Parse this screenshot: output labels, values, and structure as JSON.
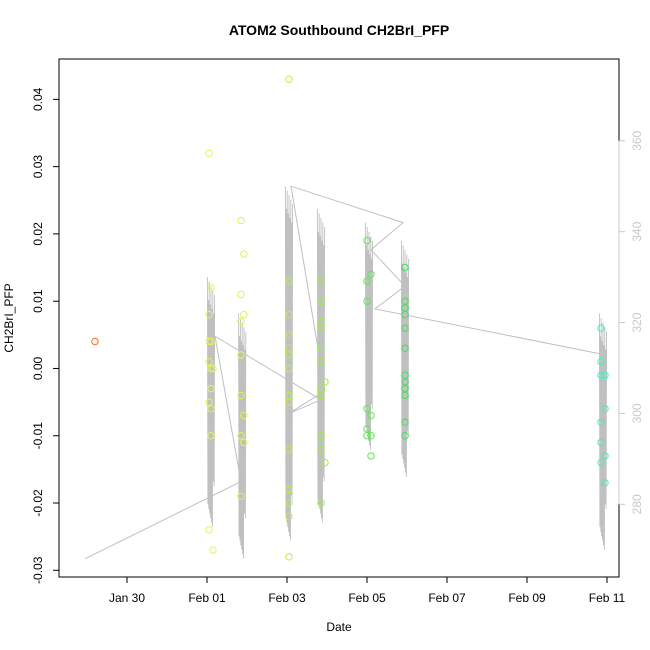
{
  "chart_data": {
    "type": "scatter",
    "title": "ATOM2 Southbound CH2BrI_PFP",
    "xlabel": "Date",
    "ylabel": "CH2BrI_PFP",
    "x_tick_labels": [
      "Jan 30",
      "Feb 01",
      "Feb 03",
      "Feb 05",
      "Feb 07",
      "Feb 09",
      "Feb 11"
    ],
    "y_tick_labels": [
      "-0.03",
      "-0.02",
      "-0.01",
      "0.00",
      "0.01",
      "0.02",
      "0.03",
      "0.04"
    ],
    "y2_tick_labels": [
      "280",
      "300",
      "320",
      "340",
      "360"
    ],
    "colors": {
      "plot_frame": "#000000",
      "right_axis": "#c8c8c8",
      "altitude_line": "#c0c0c0"
    },
    "x_axis": {
      "unit": "days",
      "range": [
        -0.7,
        13.3
      ],
      "ticks": [
        1,
        3,
        5,
        7,
        9,
        11,
        13
      ],
      "tick_dates": [
        "Jan 30",
        "Feb 01",
        "Feb 03",
        "Feb 05",
        "Feb 07",
        "Feb 09",
        "Feb 11"
      ]
    },
    "ylim": [
      -0.031,
      0.046
    ],
    "y_ticks": [
      -0.03,
      -0.02,
      -0.01,
      0.0,
      0.01,
      0.02,
      0.03,
      0.04
    ],
    "y2lim": [
      264,
      378
    ],
    "y2_ticks": [
      280,
      300,
      320,
      340,
      360
    ],
    "series": [
      {
        "points": [
          {
            "date": "Jan 29.2",
            "day": 0.2,
            "y": 0.004,
            "color": "#ff6a2a"
          },
          {
            "date": "Feb 01.05",
            "day": 3.05,
            "y": 0.032,
            "color": "#e6f25a"
          },
          {
            "date": "Feb 01.05",
            "day": 3.05,
            "y": 0.008,
            "color": "#e6f25a"
          },
          {
            "date": "Feb 01.05",
            "day": 3.05,
            "y": 0.004,
            "color": "#e6f25a"
          },
          {
            "date": "Feb 01.05",
            "day": 3.05,
            "y": 0.001,
            "color": "#e6f25a"
          },
          {
            "date": "Feb 01.05",
            "day": 3.05,
            "y": -0.005,
            "color": "#e6f25a"
          },
          {
            "date": "Feb 01.05",
            "day": 3.05,
            "y": -0.024,
            "color": "#e6f25a"
          },
          {
            "date": "Feb 01.1",
            "day": 3.1,
            "y": 0.012,
            "color": "#e6f25a"
          },
          {
            "date": "Feb 01.1",
            "day": 3.1,
            "y": 0.004,
            "color": "#e6f25a"
          },
          {
            "date": "Feb 01.1",
            "day": 3.1,
            "y": 0.0,
            "color": "#e6f25a"
          },
          {
            "date": "Feb 01.1",
            "day": 3.1,
            "y": -0.003,
            "color": "#e6f25a"
          },
          {
            "date": "Feb 01.1",
            "day": 3.1,
            "y": -0.006,
            "color": "#e6f25a"
          },
          {
            "date": "Feb 01.1",
            "day": 3.1,
            "y": -0.01,
            "color": "#e6f25a"
          },
          {
            "date": "Feb 01.15",
            "day": 3.15,
            "y": 0.0,
            "color": "#e6f25a"
          },
          {
            "date": "Feb 01.15",
            "day": 3.15,
            "y": -0.027,
            "color": "#e6f25a"
          },
          {
            "date": "Feb 01.85",
            "day": 3.85,
            "y": 0.022,
            "color": "#e0f255"
          },
          {
            "date": "Feb 01.85",
            "day": 3.85,
            "y": 0.011,
            "color": "#e0f255"
          },
          {
            "date": "Feb 01.85",
            "day": 3.85,
            "y": 0.007,
            "color": "#e0f255"
          },
          {
            "date": "Feb 01.85",
            "day": 3.85,
            "y": 0.002,
            "color": "#e0f255"
          },
          {
            "date": "Feb 01.85",
            "day": 3.85,
            "y": -0.004,
            "color": "#e0f255"
          },
          {
            "date": "Feb 01.85",
            "day": 3.85,
            "y": -0.01,
            "color": "#e0f255"
          },
          {
            "date": "Feb 01.85",
            "day": 3.85,
            "y": -0.019,
            "color": "#e0f255"
          },
          {
            "date": "Feb 01.92",
            "day": 3.92,
            "y": 0.017,
            "color": "#e0f255"
          },
          {
            "date": "Feb 01.92",
            "day": 3.92,
            "y": 0.008,
            "color": "#e0f255"
          },
          {
            "date": "Feb 01.92",
            "day": 3.92,
            "y": -0.007,
            "color": "#e0f255"
          },
          {
            "date": "Feb 01.92",
            "day": 3.92,
            "y": -0.011,
            "color": "#e0f255"
          },
          {
            "date": "Feb 03.05",
            "day": 5.05,
            "y": 0.043,
            "color": "#b8f04a"
          },
          {
            "date": "Feb 03.05",
            "day": 5.05,
            "y": 0.013,
            "color": "#b8f04a"
          },
          {
            "date": "Feb 03.05",
            "day": 5.05,
            "y": 0.008,
            "color": "#b8f04a"
          },
          {
            "date": "Feb 03.05",
            "day": 5.05,
            "y": 0.005,
            "color": "#b8f04a"
          },
          {
            "date": "Feb 03.05",
            "day": 5.05,
            "y": 0.003,
            "color": "#b8f04a"
          },
          {
            "date": "Feb 03.05",
            "day": 5.05,
            "y": 0.002,
            "color": "#b8f04a"
          },
          {
            "date": "Feb 03.05",
            "day": 5.05,
            "y": 0.0,
            "color": "#b8f04a"
          },
          {
            "date": "Feb 03.05",
            "day": 5.05,
            "y": -0.004,
            "color": "#b8f04a"
          },
          {
            "date": "Feb 03.05",
            "day": 5.05,
            "y": -0.005,
            "color": "#b8f04a"
          },
          {
            "date": "Feb 03.05",
            "day": 5.05,
            "y": -0.012,
            "color": "#b8f04a"
          },
          {
            "date": "Feb 03.05",
            "day": 5.05,
            "y": -0.018,
            "color": "#b8f04a"
          },
          {
            "date": "Feb 03.05",
            "day": 5.05,
            "y": -0.02,
            "color": "#b8f04a"
          },
          {
            "date": "Feb 03.05",
            "day": 5.05,
            "y": -0.022,
            "color": "#b8f04a"
          },
          {
            "date": "Feb 03.05",
            "day": 5.05,
            "y": -0.028,
            "color": "#b8f04a"
          },
          {
            "date": "Feb 03.85",
            "day": 5.85,
            "y": 0.013,
            "color": "#9bee45"
          },
          {
            "date": "Feb 03.85",
            "day": 5.85,
            "y": 0.01,
            "color": "#9bee45"
          },
          {
            "date": "Feb 03.85",
            "day": 5.85,
            "y": 0.007,
            "color": "#9bee45"
          },
          {
            "date": "Feb 03.85",
            "day": 5.85,
            "y": 0.006,
            "color": "#9bee45"
          },
          {
            "date": "Feb 03.85",
            "day": 5.85,
            "y": 0.003,
            "color": "#9bee45"
          },
          {
            "date": "Feb 03.85",
            "day": 5.85,
            "y": 0.001,
            "color": "#9bee45"
          },
          {
            "date": "Feb 03.85",
            "day": 5.85,
            "y": -0.003,
            "color": "#9bee45"
          },
          {
            "date": "Feb 03.85",
            "day": 5.85,
            "y": -0.004,
            "color": "#9bee45"
          },
          {
            "date": "Feb 03.85",
            "day": 5.85,
            "y": -0.01,
            "color": "#9bee45"
          },
          {
            "date": "Feb 03.85",
            "day": 5.85,
            "y": -0.012,
            "color": "#9bee45"
          },
          {
            "date": "Feb 03.85",
            "day": 5.85,
            "y": -0.02,
            "color": "#9bee45"
          },
          {
            "date": "Feb 03.95",
            "day": 5.95,
            "y": -0.002,
            "color": "#9bee45"
          },
          {
            "date": "Feb 03.95",
            "day": 5.95,
            "y": -0.014,
            "color": "#9bee45"
          },
          {
            "date": "Feb 05.0",
            "day": 7.0,
            "y": 0.019,
            "color": "#5ce852"
          },
          {
            "date": "Feb 05.0",
            "day": 7.0,
            "y": 0.013,
            "color": "#5ce852"
          },
          {
            "date": "Feb 05.0",
            "day": 7.0,
            "y": 0.01,
            "color": "#5ce852"
          },
          {
            "date": "Feb 05.0",
            "day": 7.0,
            "y": -0.006,
            "color": "#5ce852"
          },
          {
            "date": "Feb 05.0",
            "day": 7.0,
            "y": -0.009,
            "color": "#5ce852"
          },
          {
            "date": "Feb 05.0",
            "day": 7.0,
            "y": -0.01,
            "color": "#5ce852"
          },
          {
            "date": "Feb 05.1",
            "day": 7.1,
            "y": 0.014,
            "color": "#5ce852"
          },
          {
            "date": "Feb 05.1",
            "day": 7.1,
            "y": -0.007,
            "color": "#5ce852"
          },
          {
            "date": "Feb 05.1",
            "day": 7.1,
            "y": -0.01,
            "color": "#5ce852"
          },
          {
            "date": "Feb 05.1",
            "day": 7.1,
            "y": -0.013,
            "color": "#5ce852"
          },
          {
            "date": "Feb 05.95",
            "day": 7.95,
            "y": 0.015,
            "color": "#43e060"
          },
          {
            "date": "Feb 05.95",
            "day": 7.95,
            "y": 0.01,
            "color": "#43e060"
          },
          {
            "date": "Feb 05.95",
            "day": 7.95,
            "y": 0.009,
            "color": "#43e060"
          },
          {
            "date": "Feb 05.95",
            "day": 7.95,
            "y": 0.008,
            "color": "#43e060"
          },
          {
            "date": "Feb 05.95",
            "day": 7.95,
            "y": 0.006,
            "color": "#43e060"
          },
          {
            "date": "Feb 05.95",
            "day": 7.95,
            "y": 0.003,
            "color": "#43e060"
          },
          {
            "date": "Feb 05.95",
            "day": 7.95,
            "y": -0.001,
            "color": "#43e060"
          },
          {
            "date": "Feb 05.95",
            "day": 7.95,
            "y": -0.002,
            "color": "#43e060"
          },
          {
            "date": "Feb 05.95",
            "day": 7.95,
            "y": -0.003,
            "color": "#43e060"
          },
          {
            "date": "Feb 05.95",
            "day": 7.95,
            "y": -0.004,
            "color": "#43e060"
          },
          {
            "date": "Feb 05.95",
            "day": 7.95,
            "y": -0.008,
            "color": "#43e060"
          },
          {
            "date": "Feb 05.95",
            "day": 7.95,
            "y": -0.01,
            "color": "#43e060"
          },
          {
            "date": "Feb 10.85",
            "day": 12.85,
            "y": 0.006,
            "color": "#48ecc0"
          },
          {
            "date": "Feb 10.85",
            "day": 12.85,
            "y": 0.001,
            "color": "#48ecc0"
          },
          {
            "date": "Feb 10.85",
            "day": 12.85,
            "y": -0.001,
            "color": "#48ecc0"
          },
          {
            "date": "Feb 10.85",
            "day": 12.85,
            "y": -0.008,
            "color": "#48ecc0"
          },
          {
            "date": "Feb 10.85",
            "day": 12.85,
            "y": -0.011,
            "color": "#48ecc0"
          },
          {
            "date": "Feb 10.85",
            "day": 12.85,
            "y": -0.014,
            "color": "#48ecc0"
          },
          {
            "date": "Feb 10.95",
            "day": 12.95,
            "y": -0.001,
            "color": "#48ecc0"
          },
          {
            "date": "Feb 10.95",
            "day": 12.95,
            "y": -0.006,
            "color": "#48ecc0"
          },
          {
            "date": "Feb 10.95",
            "day": 12.95,
            "y": -0.013,
            "color": "#48ecc0"
          },
          {
            "date": "Feb 10.95",
            "day": 12.95,
            "y": -0.017,
            "color": "#48ecc0"
          }
        ]
      },
      {
        "axis": "y2",
        "type": "line",
        "points": [
          {
            "day": -0.05,
            "y2": 268
          },
          {
            "day": 3.85,
            "y2": 285
          },
          {
            "day": 3.2,
            "y2": 317
          },
          {
            "day": 5.85,
            "y2": 303
          },
          {
            "day": 5.05,
            "y2": 300
          },
          {
            "day": 5.95,
            "y2": 305
          },
          {
            "day": 5.1,
            "y2": 350
          },
          {
            "day": 7.9,
            "y2": 342
          },
          {
            "day": 7.1,
            "y2": 336
          },
          {
            "day": 7.95,
            "y2": 328
          },
          {
            "day": 7.2,
            "y2": 323
          },
          {
            "day": 12.9,
            "y2": 313
          }
        ],
        "bursts": [
          {
            "day": 3.1,
            "min": 275,
            "max": 330
          },
          {
            "day": 3.88,
            "min": 268,
            "max": 322
          },
          {
            "day": 5.05,
            "min": 272,
            "max": 350
          },
          {
            "day": 5.85,
            "min": 276,
            "max": 345
          },
          {
            "day": 7.05,
            "min": 292,
            "max": 342
          },
          {
            "day": 7.95,
            "min": 286,
            "max": 338
          },
          {
            "day": 12.9,
            "min": 270,
            "max": 322
          }
        ]
      }
    ]
  }
}
